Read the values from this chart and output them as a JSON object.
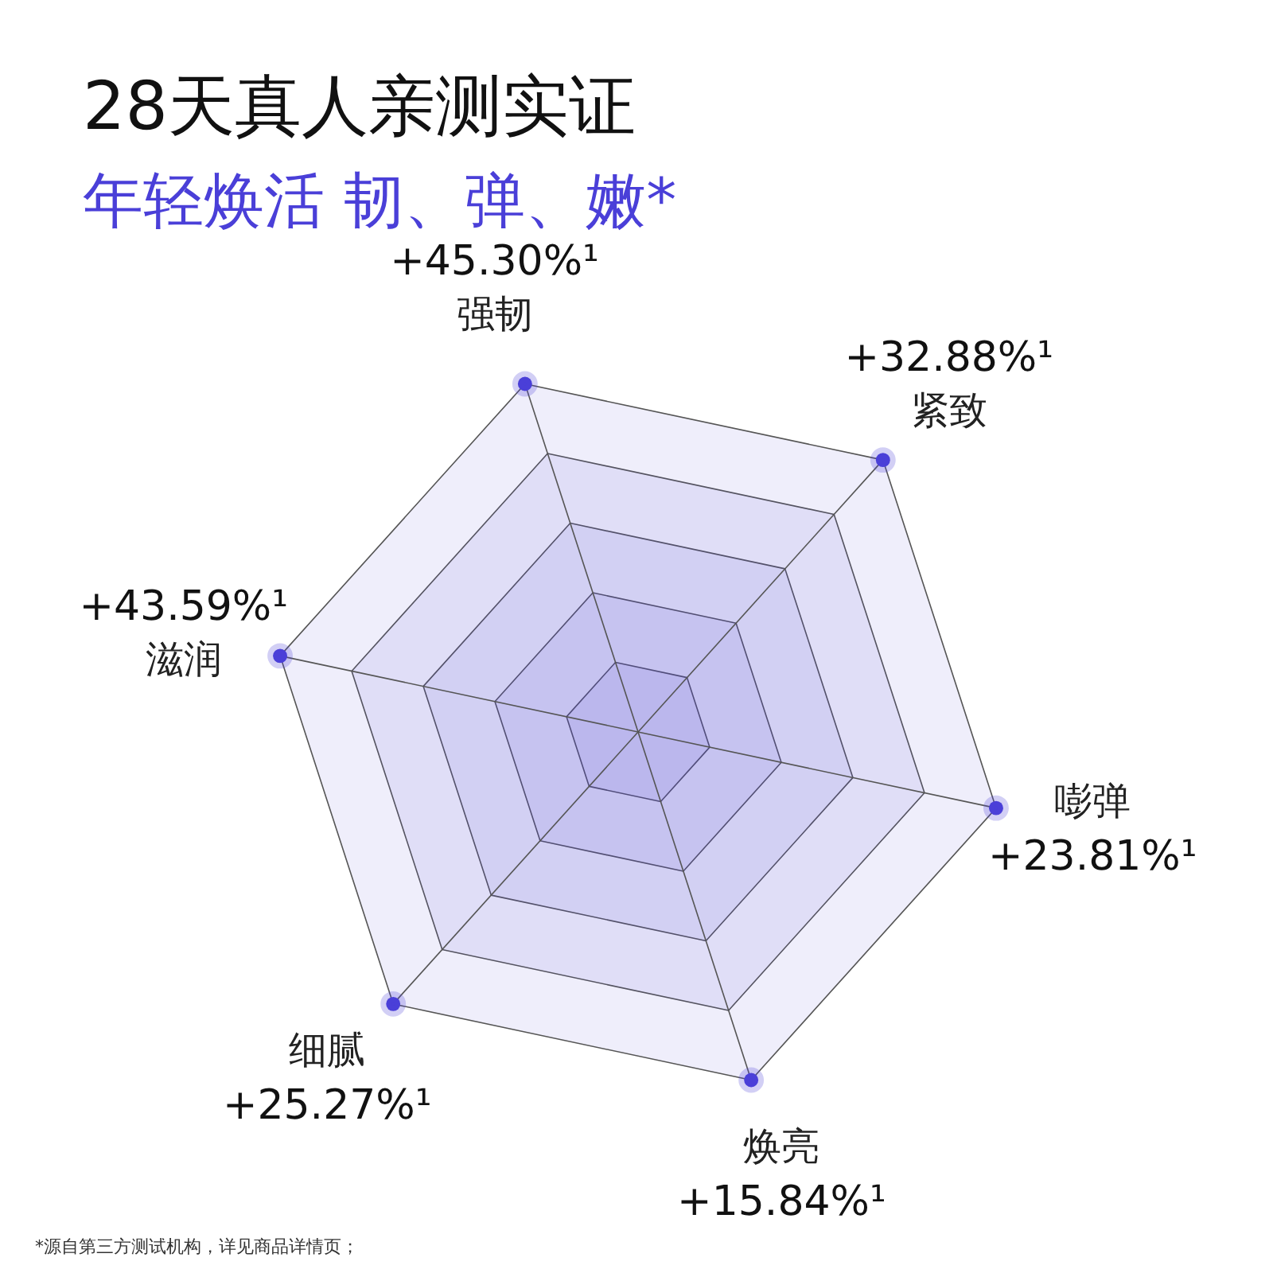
{
  "chart_data": {
    "type": "other",
    "title": "28天真人亲测实证",
    "subtitle": "年轻焕活 韧、弹、嫩*",
    "categories": [
      "强韧",
      "紧致",
      "嘭弹",
      "焕亮",
      "细腻",
      "滋润"
    ],
    "values": [
      45.3,
      32.88,
      23.81,
      15.84,
      25.27,
      43.59
    ],
    "value_labels": [
      "+45.30%¹",
      "+32.88%¹",
      "+23.81%¹",
      "+15.84%¹",
      "+25.27%¹",
      "+43.59%¹"
    ],
    "color": "#4a3fd8",
    "annotations": [
      "*源自第三方测试机构，详见商品详情页；"
    ]
  }
}
